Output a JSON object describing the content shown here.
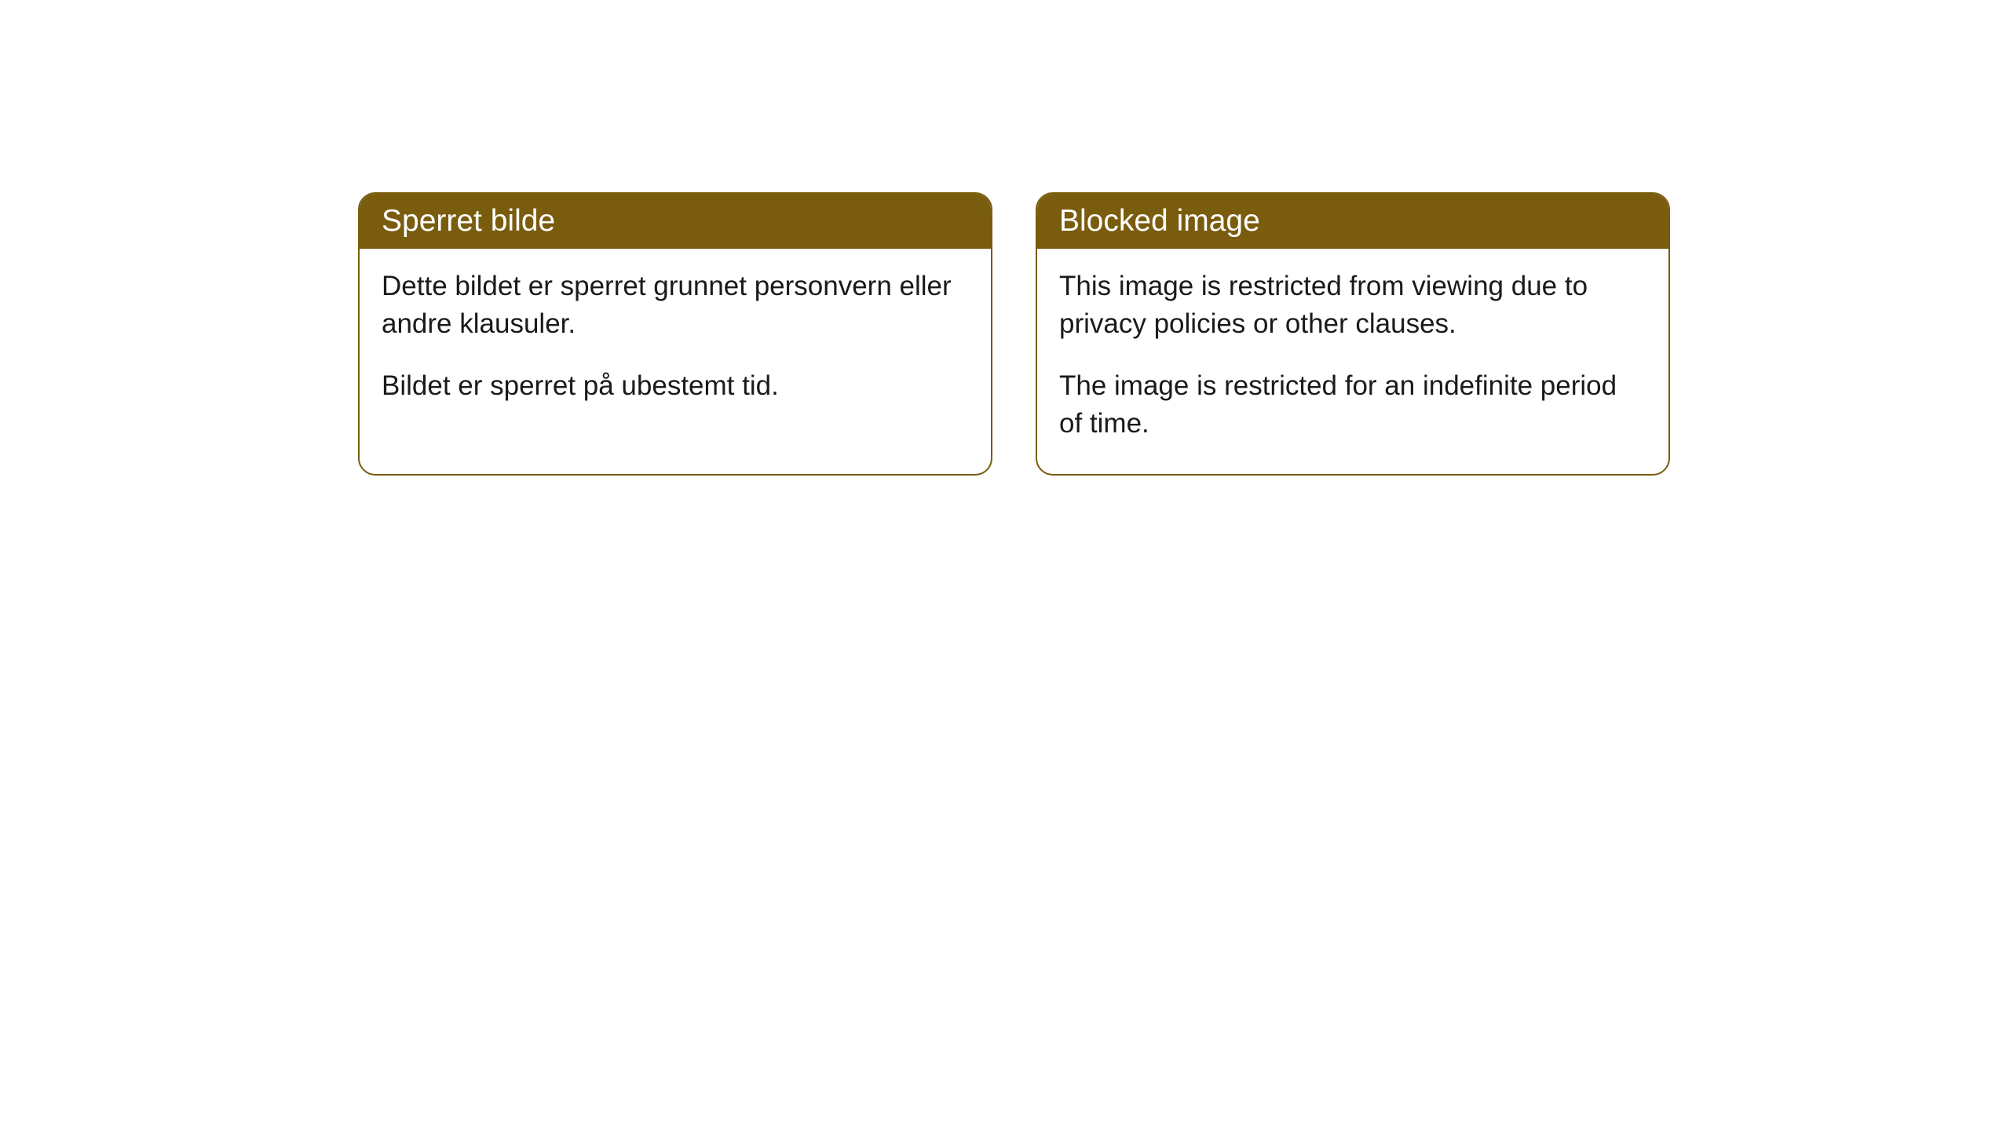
{
  "cards": [
    {
      "title": "Sperret bilde",
      "paragraph1": "Dette bildet er sperret grunnet personvern eller andre klausuler.",
      "paragraph2": "Bildet er sperret på ubestemt tid."
    },
    {
      "title": "Blocked image",
      "paragraph1": "This image is restricted from viewing due to privacy policies or other clauses.",
      "paragraph2": "The image is restricted for an indefinite period of time."
    }
  ],
  "style": {
    "header_background": "#7a5c0e",
    "header_text_color": "#ffffff",
    "border_color": "#7a5c0e",
    "body_text_color": "#1a1a1a",
    "page_background": "#ffffff",
    "border_radius": 22,
    "header_fontsize": 39,
    "body_fontsize": 35
  }
}
